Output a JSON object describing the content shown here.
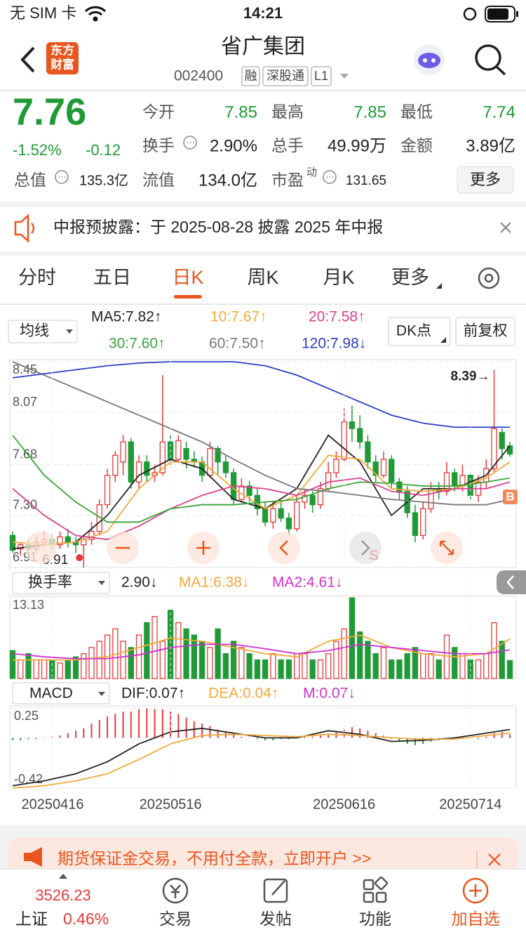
{
  "status_bar": {
    "carrier": "无 SIM 卡",
    "time": "14:21"
  },
  "header": {
    "logo_top": "东方",
    "logo_bottom": "财富",
    "title": "省广集团",
    "code": "002400",
    "tags": [
      "融",
      "深股通",
      "L1"
    ]
  },
  "quote": {
    "price": "7.76",
    "change_pct": "-1.52%",
    "change": "-0.12",
    "fields": [
      {
        "label": "今开",
        "value": "7.85"
      },
      {
        "label": "最高",
        "value": "7.85"
      },
      {
        "label": "最低",
        "value": "7.74"
      },
      {
        "label": "换手",
        "value": "2.90%"
      },
      {
        "label": "总手",
        "value": "49.99万"
      },
      {
        "label": "金额",
        "value": "3.89亿"
      },
      {
        "label": "总值",
        "value": "135.3亿"
      },
      {
        "label": "流值",
        "value": "134.0亿"
      },
      {
        "label": "市盈",
        "sup": "动",
        "value": "131.65"
      }
    ],
    "more_button": "更多"
  },
  "notice": {
    "text": "中报预披露：于 2025-08-28 披露 2025 年中报"
  },
  "tabs": {
    "items": [
      "分时",
      "五日",
      "日K",
      "周K",
      "月K",
      "更多"
    ],
    "selected": 2
  },
  "chart_data": {
    "type": "candlestick",
    "indicator_button": "均线",
    "dk_button": "DK点",
    "adjust_button": "前复权",
    "categories": [
      null,
      null,
      null,
      null,
      null,
      "20250416",
      null,
      null,
      null,
      null,
      null,
      null,
      null,
      null,
      null,
      null,
      null,
      null,
      null,
      null,
      "20250516",
      null,
      null,
      null,
      null,
      null,
      null,
      null,
      null,
      null,
      null,
      null,
      null,
      null,
      null,
      null,
      null,
      null,
      null,
      null,
      null,
      null,
      "20250616",
      null,
      null,
      null,
      null,
      null,
      null,
      null,
      null,
      null,
      null,
      null,
      null,
      null,
      null,
      null,
      "20250714",
      null,
      null,
      null,
      null,
      null
    ],
    "open": [
      7.15,
      7.05,
      7.08,
      7.05,
      7.1,
      7.12,
      7.08,
      7.14,
      7.1,
      7.08,
      7.12,
      7.18,
      7.38,
      7.6,
      7.7,
      7.85,
      7.55,
      7.7,
      7.6,
      7.62,
      7.85,
      7.72,
      7.8,
      7.72,
      7.7,
      7.6,
      7.8,
      7.7,
      7.62,
      7.42,
      7.52,
      7.45,
      7.35,
      7.25,
      7.35,
      7.28,
      7.2,
      7.4,
      7.45,
      7.38,
      7.5,
      7.62,
      7.72,
      8.0,
      7.95,
      7.85,
      7.7,
      7.6,
      7.72,
      7.55,
      7.48,
      7.32,
      7.15,
      7.35,
      7.5,
      7.48,
      7.62,
      7.52,
      7.6,
      7.45,
      7.55,
      7.65,
      7.92,
      7.82
    ],
    "close": [
      7.04,
      7.08,
      7.05,
      7.1,
      7.12,
      7.08,
      7.14,
      7.1,
      7.08,
      7.12,
      7.18,
      7.38,
      7.6,
      7.75,
      7.85,
      7.55,
      7.7,
      7.6,
      7.62,
      7.85,
      7.72,
      7.86,
      7.72,
      7.7,
      7.6,
      7.8,
      7.7,
      7.62,
      7.42,
      7.52,
      7.45,
      7.35,
      7.25,
      7.35,
      7.28,
      7.2,
      7.4,
      7.45,
      7.38,
      7.5,
      7.62,
      7.72,
      8.0,
      7.95,
      7.85,
      7.7,
      7.6,
      7.72,
      7.55,
      7.48,
      7.32,
      7.15,
      7.35,
      7.5,
      7.48,
      7.62,
      7.52,
      7.6,
      7.45,
      7.55,
      7.65,
      7.95,
      7.8,
      7.76
    ],
    "high": [
      7.18,
      7.1,
      7.12,
      7.14,
      7.18,
      7.16,
      7.18,
      7.2,
      7.14,
      7.15,
      7.25,
      7.42,
      7.65,
      7.78,
      7.9,
      7.88,
      7.75,
      7.75,
      7.68,
      8.35,
      7.9,
      7.9,
      7.85,
      7.78,
      7.74,
      7.85,
      7.82,
      7.75,
      7.65,
      7.58,
      7.56,
      7.5,
      7.4,
      7.4,
      7.4,
      7.32,
      7.45,
      7.5,
      7.48,
      7.55,
      7.7,
      7.78,
      8.1,
      8.12,
      8.05,
      7.9,
      7.75,
      7.78,
      7.75,
      7.58,
      7.52,
      7.38,
      7.4,
      7.55,
      7.55,
      7.7,
      7.65,
      7.68,
      7.62,
      7.6,
      7.72,
      8.39,
      7.95,
      7.85
    ],
    "low": [
      7.02,
      7.0,
      7.01,
      7.02,
      7.06,
      7.04,
      7.05,
      7.06,
      7.02,
      6.91,
      7.08,
      7.15,
      7.35,
      7.55,
      7.6,
      7.5,
      7.5,
      7.55,
      7.55,
      7.6,
      7.68,
      7.7,
      7.65,
      7.66,
      7.55,
      7.58,
      7.6,
      7.58,
      7.38,
      7.4,
      7.4,
      7.3,
      7.22,
      7.2,
      7.25,
      7.15,
      7.18,
      7.35,
      7.32,
      7.35,
      7.48,
      7.58,
      7.7,
      7.85,
      7.8,
      7.65,
      7.55,
      7.58,
      7.5,
      7.42,
      7.28,
      7.1,
      7.12,
      7.32,
      7.42,
      7.45,
      7.48,
      7.48,
      7.42,
      7.4,
      7.5,
      7.62,
      7.72,
      7.74
    ],
    "up_color": "#e8393a",
    "down_color": "#1f9a37",
    "ylim": [
      6.91,
      8.45
    ],
    "yticks": [
      8.45,
      8.07,
      7.68,
      {
        "value": 7.3,
        "label": "7.30"
      },
      6.91
    ],
    "grid": true,
    "high_label": "8.39→",
    "low_label": "6.91",
    "buy_marker": "B",
    "sell_marker": "S",
    "ma_x": [
      0,
      4,
      8,
      12,
      16,
      20,
      24,
      28,
      32,
      36,
      40,
      44,
      48,
      52,
      56,
      60,
      63
    ],
    "ma_series": [
      {
        "name": "MA5:7.82↑",
        "color": "#222222",
        "values": [
          7.05,
          7.08,
          7.1,
          7.3,
          7.6,
          7.72,
          7.65,
          7.42,
          7.35,
          7.5,
          7.9,
          7.7,
          7.3,
          7.5,
          7.5,
          7.6,
          7.82
        ]
      },
      {
        "name": "10:7.67↑",
        "color": "#f2a93b",
        "values": [
          7.1,
          7.08,
          7.1,
          7.18,
          7.5,
          7.7,
          7.7,
          7.5,
          7.35,
          7.45,
          7.75,
          7.72,
          7.5,
          7.48,
          7.5,
          7.58,
          7.7
        ]
      },
      {
        "name": "20:7.58↑",
        "color": "#d8418d",
        "values": [
          7.5,
          7.3,
          7.15,
          7.12,
          7.22,
          7.35,
          7.45,
          7.52,
          7.5,
          7.45,
          7.55,
          7.58,
          7.48,
          7.45,
          7.5,
          7.5,
          7.55
        ]
      },
      {
        "name": "30:7.60↑",
        "color": "#3aa33a",
        "values": [
          7.9,
          7.6,
          7.4,
          7.25,
          7.25,
          7.35,
          7.38,
          7.38,
          7.4,
          7.42,
          7.5,
          7.55,
          7.54,
          7.52,
          7.52,
          7.55,
          7.58
        ]
      },
      {
        "name": "60:7.50↑",
        "color": "#777777",
        "values": [
          8.45,
          8.35,
          8.25,
          8.15,
          8.05,
          7.95,
          7.85,
          7.72,
          7.6,
          7.5,
          7.48,
          7.45,
          7.42,
          7.4,
          7.38,
          7.38,
          7.42
        ]
      },
      {
        "name": "120:7.98↓",
        "color": "#2b3fc4",
        "values": [
          8.33,
          8.36,
          8.39,
          8.42,
          8.44,
          8.45,
          8.45,
          8.45,
          8.42,
          8.35,
          8.25,
          8.15,
          8.05,
          7.99,
          7.96,
          7.96,
          7.96
        ]
      }
    ],
    "volume": {
      "label": "换手率",
      "value_text": "2.90↓",
      "values": [
        4.5,
        3,
        4,
        3,
        3,
        3,
        2.5,
        3,
        3.5,
        4,
        5,
        6,
        7,
        8,
        6,
        5,
        7,
        9,
        10,
        6,
        11,
        9,
        8,
        7,
        6,
        5,
        8,
        4,
        6,
        5,
        4,
        3,
        3,
        4,
        3,
        3,
        4,
        4,
        3,
        3,
        4,
        6,
        8,
        13,
        7.5,
        6,
        4,
        5,
        3,
        3,
        4,
        5,
        4,
        4,
        3,
        7,
        5,
        4,
        3,
        3,
        4,
        9,
        6,
        2.9
      ],
      "ylim": [
        0,
        13.13
      ],
      "yticks": [
        13.13
      ],
      "ma_series": [
        {
          "name": "MA1:6.38↓",
          "color": "#f2a93b",
          "values": [
            3,
            3,
            3,
            3.5,
            5,
            6.5,
            6,
            5,
            4,
            3.5,
            6,
            7,
            5,
            4,
            3.5,
            4,
            6.38
          ]
        },
        {
          "name": "MA2:4.61↓",
          "color": "#d030d0",
          "values": [
            4,
            3.5,
            3.2,
            3.2,
            3.8,
            5,
            5.5,
            5.5,
            4.8,
            4,
            4.5,
            5.5,
            5,
            4.5,
            4,
            4,
            4.61
          ]
        }
      ]
    },
    "macd": {
      "label": "MACD",
      "m_name": "M:0.07↓",
      "m_color": "#d030d0",
      "m": [
        -0.02,
        -0.02,
        -0.01,
        -0.01,
        0.0,
        0.01,
        0.02,
        0.04,
        0.06,
        0.08,
        0.12,
        0.15,
        0.18,
        0.2,
        0.22,
        0.22,
        0.24,
        0.25,
        0.24,
        0.24,
        0.22,
        0.2,
        0.17,
        0.14,
        0.12,
        0.1,
        0.07,
        0.05,
        0.03,
        0.01,
        0,
        -0.01,
        -0.02,
        -0.02,
        -0.01,
        -0.01,
        0.0,
        0.01,
        0.01,
        0.02,
        0.03,
        0.05,
        0.07,
        0.09,
        0.08,
        0.06,
        0.04,
        0.02,
        -0.01,
        -0.03,
        -0.05,
        -0.06,
        -0.05,
        -0.03,
        -0.02,
        -0.01,
        0.0,
        0.01,
        0.0,
        -0.01,
        0.01,
        0.04,
        0.05,
        0.03
      ],
      "ylim": [
        -0.42,
        0.25
      ],
      "yticks": [
        0.25,
        -0.42
      ],
      "series": [
        {
          "name": "DIF:0.07↑",
          "color": "#222222",
          "values": [
            -0.4,
            -0.36,
            -0.3,
            -0.2,
            -0.05,
            0.05,
            0.08,
            0.04,
            0.0,
            0.0,
            0.06,
            0.03,
            -0.03,
            -0.02,
            0.0,
            0.04,
            0.07
          ]
        },
        {
          "name": "DEA:0.04↑",
          "color": "#f2a93b",
          "values": [
            -0.42,
            -0.4,
            -0.36,
            -0.3,
            -0.18,
            -0.05,
            0.02,
            0.03,
            0.02,
            0.01,
            0.03,
            0.02,
            0.0,
            -0.01,
            -0.01,
            0.02,
            0.04
          ]
        }
      ]
    }
  },
  "banner": {
    "text": "期货保证金交易，不用付全款，立即开户 >>"
  },
  "bottom_bar": {
    "index_value": "3526.23",
    "index_name": "上证",
    "index_change": "0.46%",
    "items": [
      "交易",
      "发帖",
      "功能",
      "加自选"
    ]
  }
}
